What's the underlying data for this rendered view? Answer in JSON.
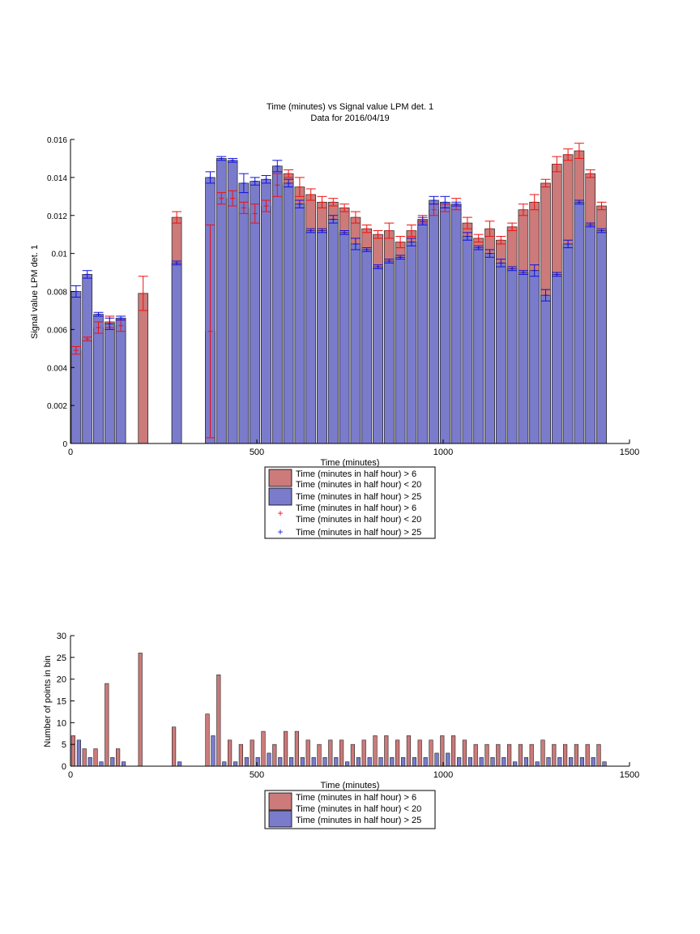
{
  "figure": {
    "title_line1": "Time (minutes) vs Signal value LPM det. 1",
    "title_line2": "Data for 2016/04/19"
  },
  "colors": {
    "red_fill": "#cc7a7a",
    "blue_fill": "#7b7bcc",
    "red_marker": "#ee1111",
    "blue_marker": "#1111dd",
    "axis": "#000000"
  },
  "chart_data": [
    {
      "type": "bar",
      "title": "Time (minutes) vs Signal value LPM det. 1\nData for 2016/04/19",
      "xlabel": "Time (minutes)",
      "ylabel": "Signal value LPM det. 1",
      "xlim": [
        0,
        1500
      ],
      "ylim": [
        0,
        0.016
      ],
      "xticks": [
        "0",
        "500",
        "1000",
        "1500"
      ],
      "xtick_values": [
        0,
        500,
        1000,
        1500
      ],
      "yticks": [
        "0",
        "0.002",
        "0.004",
        "0.006",
        "0.008",
        "0.01",
        "0.012",
        "0.014",
        "0.016"
      ],
      "ytick_values": [
        0,
        0.002,
        0.004,
        0.006,
        0.008,
        0.01,
        0.012,
        0.014,
        0.016
      ],
      "grid": false,
      "legend_position": "below",
      "legend": [
        {
          "label": "Time (minutes in half hour) > 6\nTime (minutes in half hour) < 20",
          "kind": "bar",
          "color_key": "red_fill"
        },
        {
          "label": "Time (minutes in half hour) > 25",
          "kind": "bar",
          "color_key": "blue_fill"
        },
        {
          "label": "Time (minutes in half hour) > 6\nTime (minutes in half hour) < 20",
          "kind": "marker",
          "color_key": "red_marker"
        },
        {
          "label": "Time (minutes in half hour) > 25",
          "kind": "marker",
          "color_key": "blue_marker"
        }
      ],
      "series": [
        {
          "x": [
            15,
            45,
            75,
            105,
            135,
            195,
            285,
            375,
            405,
            435,
            465,
            495,
            525,
            555,
            585,
            615,
            645,
            675,
            705,
            735,
            765,
            795,
            825,
            855,
            885,
            915,
            945,
            975,
            1005,
            1035,
            1065,
            1095,
            1125,
            1155,
            1185,
            1215,
            1245,
            1275,
            1305,
            1335,
            1365,
            1395,
            1425
          ],
          "values": [
            0.0049,
            0.0055,
            0.0061,
            0.0064,
            0.0062,
            0.0079,
            0.0119,
            0.0059,
            0.0129,
            0.0129,
            0.0124,
            0.0121,
            0.0125,
            0.0136,
            0.0142,
            0.0135,
            0.0131,
            0.0127,
            0.0127,
            0.0124,
            0.0119,
            0.0113,
            0.011,
            0.0112,
            0.0106,
            0.0112,
            0.0118,
            0.0123,
            0.0124,
            0.0126,
            0.0116,
            0.0108,
            0.0113,
            0.0107,
            0.0114,
            0.0123,
            0.0127,
            0.0137,
            0.0147,
            0.0152,
            0.0154,
            0.0142,
            0.0125
          ],
          "errors": [
            0.0002,
            0.0001,
            0.0003,
            0.0003,
            0.0003,
            0.0009,
            0.0003,
            0.0056,
            0.0003,
            0.0004,
            0.0003,
            0.0005,
            0.0003,
            0.0006,
            0.0002,
            0.0005,
            0.0003,
            0.0003,
            0.0002,
            0.0002,
            0.0003,
            0.0002,
            0.0002,
            0.0004,
            0.0003,
            0.0003,
            0.0002,
            0.0003,
            0.0002,
            0.0003,
            0.0003,
            0.0002,
            0.0004,
            0.0002,
            0.0002,
            0.0003,
            0.0004,
            0.0002,
            0.0004,
            0.0003,
            0.0004,
            0.0002,
            0.0002
          ]
        },
        {
          "x": [
            15,
            45,
            75,
            105,
            135,
            285,
            375,
            405,
            435,
            465,
            495,
            525,
            555,
            585,
            615,
            645,
            675,
            705,
            735,
            765,
            795,
            825,
            855,
            885,
            915,
            945,
            975,
            1005,
            1035,
            1065,
            1095,
            1125,
            1155,
            1185,
            1215,
            1245,
            1275,
            1305,
            1335,
            1365,
            1395,
            1425
          ],
          "values": [
            0.008,
            0.0089,
            0.0068,
            0.0063,
            0.0066,
            0.0095,
            0.014,
            0.015,
            0.0149,
            0.0137,
            0.0138,
            0.0139,
            0.0146,
            0.0137,
            0.0126,
            0.0112,
            0.0112,
            0.0118,
            0.0111,
            0.0105,
            0.0102,
            0.0093,
            0.0096,
            0.0098,
            0.0106,
            0.0117,
            0.0128,
            0.0127,
            0.0126,
            0.0109,
            0.0103,
            0.01,
            0.0095,
            0.0092,
            0.009,
            0.0091,
            0.0078,
            0.0089,
            0.0105,
            0.0127,
            0.0115,
            0.0112
          ],
          "errors": [
            0.0003,
            0.0002,
            0.0001,
            0.0003,
            0.0001,
            0.0001,
            0.0003,
            0.0001,
            0.0001,
            0.0005,
            0.0002,
            0.0002,
            0.0003,
            0.0002,
            0.0002,
            0.0001,
            0.0001,
            0.0002,
            0.0001,
            0.0003,
            0.0001,
            0.0001,
            0.0001,
            0.0001,
            0.0002,
            0.0002,
            0.0002,
            0.0003,
            0.0001,
            0.0002,
            0.0001,
            0.0002,
            0.0002,
            0.0001,
            0.0001,
            0.0003,
            0.0003,
            0.0001,
            0.0002,
            0.0001,
            0.0001,
            0.0001
          ]
        }
      ]
    },
    {
      "type": "bar",
      "title": "",
      "xlabel": "Time (minutes)",
      "ylabel": "Number of points in bin",
      "xlim": [
        0,
        1500
      ],
      "ylim": [
        0,
        30
      ],
      "xticks": [
        "0",
        "500",
        "1000",
        "1500"
      ],
      "xtick_values": [
        0,
        500,
        1000,
        1500
      ],
      "yticks": [
        "0",
        "5",
        "10",
        "15",
        "20",
        "25",
        "30"
      ],
      "ytick_values": [
        0,
        5,
        10,
        15,
        20,
        25,
        30
      ],
      "grid": false,
      "legend_position": "below",
      "legend": [
        {
          "label": "Time (minutes in half hour) > 6",
          "kind": "bar",
          "color_key": "red_fill"
        },
        {
          "label": "Time (minutes in half hour) < 20",
          "kind": "bar",
          "color_key": "red_fill"
        },
        {
          "label": "Time (minutes in half hour) > 25",
          "kind": "bar",
          "color_key": "blue_fill"
        }
      ],
      "series": [
        {
          "x": [
            15,
            45,
            75,
            105,
            135,
            195,
            285,
            375,
            405,
            435,
            465,
            495,
            525,
            555,
            585,
            615,
            645,
            675,
            705,
            735,
            765,
            795,
            825,
            855,
            885,
            915,
            945,
            975,
            1005,
            1035,
            1065,
            1095,
            1125,
            1155,
            1185,
            1215,
            1245,
            1275,
            1305,
            1335,
            1365,
            1395,
            1425
          ],
          "values": [
            7,
            4,
            4,
            19,
            4,
            26,
            9,
            12,
            21,
            6,
            5,
            6,
            8,
            5,
            8,
            8,
            6,
            5,
            6,
            6,
            5,
            6,
            7,
            7,
            6,
            7,
            6,
            6,
            7,
            7,
            6,
            5,
            5,
            5,
            5,
            5,
            5,
            6,
            5,
            5,
            5,
            5,
            5
          ]
        },
        {
          "x": [
            15,
            45,
            75,
            105,
            135,
            285,
            375,
            405,
            435,
            465,
            495,
            525,
            555,
            585,
            615,
            645,
            675,
            705,
            735,
            765,
            795,
            825,
            855,
            885,
            915,
            945,
            975,
            1005,
            1035,
            1065,
            1095,
            1125,
            1155,
            1185,
            1215,
            1245,
            1275,
            1305,
            1335,
            1365,
            1395,
            1425
          ],
          "values": [
            6,
            2,
            1,
            2,
            1,
            1,
            7,
            1,
            1,
            2,
            2,
            3,
            2,
            2,
            2,
            2,
            2,
            2,
            1,
            2,
            2,
            2,
            2,
            2,
            2,
            2,
            3,
            3,
            2,
            2,
            2,
            2,
            2,
            1,
            2,
            1,
            2,
            2,
            2,
            2,
            2,
            1
          ]
        }
      ]
    }
  ]
}
